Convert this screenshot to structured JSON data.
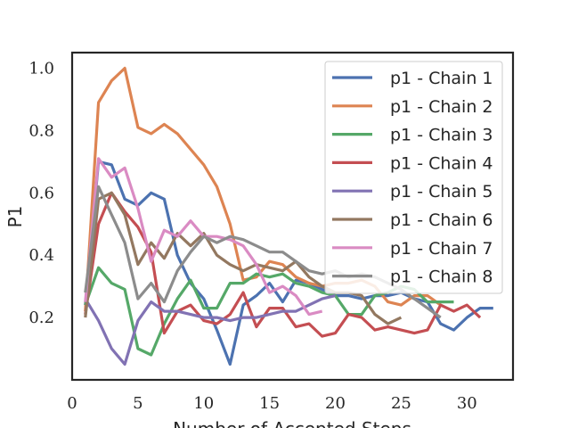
{
  "chart_data": {
    "type": "line",
    "xlabel": "Number of Accepted Steps",
    "ylabel": "P1",
    "xlim": [
      0,
      33.5
    ],
    "ylim": [
      0,
      1.05
    ],
    "x_ticks": [
      0,
      5,
      10,
      15,
      20,
      25,
      30
    ],
    "y_ticks": [
      0.2,
      0.4,
      0.6,
      0.8,
      1.0
    ],
    "x_tick_labels": [
      "0",
      "5",
      "10",
      "15",
      "20",
      "25",
      "30"
    ],
    "y_tick_labels": [
      "0.2",
      "0.4",
      "0.6",
      "0.8",
      "1.0"
    ],
    "grid": false,
    "legend_position": "top-right",
    "series": [
      {
        "name": "p1 - Chain 1",
        "color": "#4c72b0",
        "values": [
          [
            1,
            0.24
          ],
          [
            2,
            0.7
          ],
          [
            3,
            0.69
          ],
          [
            4,
            0.58
          ],
          [
            5,
            0.56
          ],
          [
            6,
            0.6
          ],
          [
            7,
            0.58
          ],
          [
            8,
            0.4
          ],
          [
            9,
            0.31
          ],
          [
            10,
            0.26
          ],
          [
            11,
            0.16
          ],
          [
            12,
            0.05
          ],
          [
            13,
            0.24
          ],
          [
            14,
            0.27
          ],
          [
            15,
            0.31
          ],
          [
            16,
            0.25
          ],
          [
            17,
            0.32
          ],
          [
            18,
            0.31
          ],
          [
            19,
            0.29
          ],
          [
            20,
            0.27
          ],
          [
            21,
            0.27
          ],
          [
            22,
            0.26
          ],
          [
            23,
            0.27
          ],
          [
            24,
            0.27
          ],
          [
            25,
            0.28
          ],
          [
            26,
            0.26
          ],
          [
            27,
            0.25
          ],
          [
            28,
            0.18
          ],
          [
            29,
            0.16
          ],
          [
            30,
            0.2
          ],
          [
            31,
            0.23
          ],
          [
            32,
            0.23
          ]
        ]
      },
      {
        "name": "p1 - Chain 2",
        "color": "#dd8452",
        "values": [
          [
            1,
            0.22
          ],
          [
            2,
            0.89
          ],
          [
            3,
            0.96
          ],
          [
            4,
            1.0
          ],
          [
            5,
            0.81
          ],
          [
            6,
            0.79
          ],
          [
            7,
            0.82
          ],
          [
            8,
            0.79
          ],
          [
            9,
            0.74
          ],
          [
            10,
            0.69
          ],
          [
            11,
            0.62
          ],
          [
            12,
            0.5
          ],
          [
            13,
            0.32
          ],
          [
            14,
            0.33
          ],
          [
            15,
            0.38
          ],
          [
            16,
            0.37
          ],
          [
            17,
            0.33
          ],
          [
            18,
            0.31
          ],
          [
            19,
            0.3
          ],
          [
            20,
            0.31
          ],
          [
            21,
            0.31
          ],
          [
            22,
            0.32
          ],
          [
            23,
            0.3
          ],
          [
            24,
            0.25
          ],
          [
            25,
            0.24
          ],
          [
            26,
            0.27
          ],
          [
            27,
            0.27
          ],
          [
            28,
            0.24
          ]
        ]
      },
      {
        "name": "p1 - Chain 3",
        "color": "#55a868",
        "values": [
          [
            1,
            0.24
          ],
          [
            2,
            0.36
          ],
          [
            3,
            0.31
          ],
          [
            4,
            0.29
          ],
          [
            5,
            0.1
          ],
          [
            6,
            0.08
          ],
          [
            7,
            0.18
          ],
          [
            8,
            0.26
          ],
          [
            9,
            0.32
          ],
          [
            10,
            0.23
          ],
          [
            11,
            0.23
          ],
          [
            12,
            0.31
          ],
          [
            13,
            0.31
          ],
          [
            14,
            0.34
          ],
          [
            15,
            0.33
          ],
          [
            16,
            0.34
          ],
          [
            17,
            0.31
          ],
          [
            18,
            0.3
          ],
          [
            19,
            0.28
          ],
          [
            20,
            0.27
          ],
          [
            21,
            0.21
          ],
          [
            22,
            0.21
          ],
          [
            23,
            0.27
          ],
          [
            24,
            0.28
          ],
          [
            25,
            0.3
          ],
          [
            26,
            0.29
          ],
          [
            27,
            0.25
          ],
          [
            28,
            0.25
          ],
          [
            29,
            0.25
          ]
        ]
      },
      {
        "name": "p1 - Chain 4",
        "color": "#c44e52",
        "values": [
          [
            1,
            0.21
          ],
          [
            2,
            0.5
          ],
          [
            3,
            0.6
          ],
          [
            4,
            0.54
          ],
          [
            5,
            0.49
          ],
          [
            6,
            0.41
          ],
          [
            7,
            0.15
          ],
          [
            8,
            0.22
          ],
          [
            9,
            0.24
          ],
          [
            10,
            0.19
          ],
          [
            11,
            0.18
          ],
          [
            12,
            0.21
          ],
          [
            13,
            0.28
          ],
          [
            14,
            0.17
          ],
          [
            15,
            0.23
          ],
          [
            16,
            0.23
          ],
          [
            17,
            0.17
          ],
          [
            18,
            0.18
          ],
          [
            19,
            0.14
          ],
          [
            20,
            0.15
          ],
          [
            21,
            0.21
          ],
          [
            22,
            0.2
          ],
          [
            23,
            0.16
          ],
          [
            24,
            0.17
          ],
          [
            25,
            0.16
          ],
          [
            26,
            0.15
          ],
          [
            27,
            0.16
          ],
          [
            28,
            0.24
          ],
          [
            29,
            0.22
          ],
          [
            30,
            0.24
          ],
          [
            31,
            0.2
          ]
        ]
      },
      {
        "name": "p1 - Chain 5",
        "color": "#8172b3",
        "values": [
          [
            1,
            0.26
          ],
          [
            2,
            0.19
          ],
          [
            3,
            0.1
          ],
          [
            4,
            0.05
          ],
          [
            5,
            0.19
          ],
          [
            6,
            0.25
          ],
          [
            7,
            0.22
          ],
          [
            8,
            0.22
          ],
          [
            9,
            0.21
          ],
          [
            10,
            0.2
          ],
          [
            11,
            0.2
          ],
          [
            12,
            0.19
          ],
          [
            13,
            0.2
          ],
          [
            14,
            0.2
          ],
          [
            15,
            0.21
          ],
          [
            16,
            0.22
          ],
          [
            17,
            0.22
          ],
          [
            18,
            0.24
          ],
          [
            19,
            0.26
          ],
          [
            20,
            0.27
          ]
        ]
      },
      {
        "name": "p1 - Chain 6",
        "color": "#937860",
        "values": [
          [
            1,
            0.2
          ],
          [
            2,
            0.58
          ],
          [
            3,
            0.6
          ],
          [
            4,
            0.53
          ],
          [
            5,
            0.37
          ],
          [
            6,
            0.44
          ],
          [
            7,
            0.39
          ],
          [
            8,
            0.47
          ],
          [
            9,
            0.43
          ],
          [
            10,
            0.47
          ],
          [
            11,
            0.4
          ],
          [
            12,
            0.37
          ],
          [
            13,
            0.35
          ],
          [
            14,
            0.37
          ],
          [
            15,
            0.36
          ],
          [
            16,
            0.35
          ],
          [
            17,
            0.38
          ],
          [
            18,
            0.33
          ],
          [
            19,
            0.3
          ],
          [
            20,
            0.28
          ],
          [
            21,
            0.28
          ],
          [
            22,
            0.27
          ],
          [
            23,
            0.21
          ],
          [
            24,
            0.18
          ],
          [
            25,
            0.2
          ]
        ]
      },
      {
        "name": "p1 - Chain 7",
        "color": "#da8bc3",
        "values": [
          [
            1,
            0.25
          ],
          [
            2,
            0.71
          ],
          [
            3,
            0.65
          ],
          [
            4,
            0.68
          ],
          [
            5,
            0.55
          ],
          [
            6,
            0.38
          ],
          [
            7,
            0.48
          ],
          [
            8,
            0.46
          ],
          [
            9,
            0.51
          ],
          [
            10,
            0.46
          ],
          [
            11,
            0.46
          ],
          [
            12,
            0.45
          ],
          [
            13,
            0.43
          ],
          [
            14,
            0.37
          ],
          [
            15,
            0.28
          ],
          [
            16,
            0.3
          ],
          [
            17,
            0.27
          ],
          [
            18,
            0.21
          ],
          [
            19,
            0.22
          ]
        ]
      },
      {
        "name": "p1 - Chain 8",
        "color": "#8c8c8c",
        "values": [
          [
            1,
            0.28
          ],
          [
            2,
            0.62
          ],
          [
            3,
            0.53
          ],
          [
            4,
            0.44
          ],
          [
            5,
            0.26
          ],
          [
            6,
            0.31
          ],
          [
            7,
            0.25
          ],
          [
            8,
            0.35
          ],
          [
            9,
            0.41
          ],
          [
            10,
            0.46
          ],
          [
            11,
            0.44
          ],
          [
            12,
            0.46
          ],
          [
            13,
            0.45
          ],
          [
            14,
            0.43
          ],
          [
            15,
            0.41
          ],
          [
            16,
            0.41
          ],
          [
            17,
            0.38
          ],
          [
            18,
            0.35
          ],
          [
            19,
            0.34
          ],
          [
            20,
            0.35
          ],
          [
            21,
            0.33
          ],
          [
            22,
            0.34
          ],
          [
            23,
            0.33
          ],
          [
            24,
            0.31
          ],
          [
            25,
            0.29
          ],
          [
            26,
            0.26
          ],
          [
            27,
            0.23
          ],
          [
            28,
            0.2
          ]
        ]
      }
    ]
  }
}
